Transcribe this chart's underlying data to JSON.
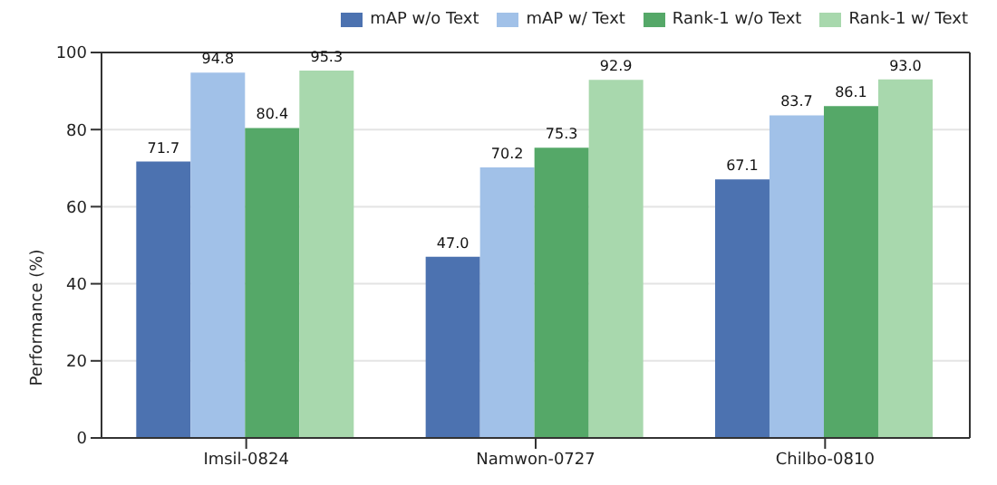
{
  "chart_data": {
    "type": "bar",
    "ylabel": "Performance (%)",
    "categories": [
      "Imsil-0824",
      "Namwon-0727",
      "Chilbo-0810"
    ],
    "series": [
      {
        "name": "mAP w/o Text",
        "color": "#4c72b0",
        "values": [
          71.7,
          47.0,
          67.1
        ],
        "value_labels": [
          "71.7",
          "47.0",
          "67.1"
        ]
      },
      {
        "name": "mAP w/ Text",
        "color": "#a1c1e8",
        "values": [
          94.8,
          70.2,
          83.7
        ],
        "value_labels": [
          "94.8",
          "70.2",
          "83.7"
        ]
      },
      {
        "name": "Rank-1 w/o Text",
        "color": "#55a868",
        "values": [
          80.4,
          75.3,
          86.1
        ],
        "value_labels": [
          "80.4",
          "75.3",
          "86.1"
        ]
      },
      {
        "name": "Rank-1 w/ Text",
        "color": "#a8d8ad",
        "values": [
          95.3,
          92.9,
          93.0
        ],
        "value_labels": [
          "95.3",
          "92.9",
          "93.0"
        ]
      }
    ],
    "ylim": [
      0,
      100
    ],
    "yticks": [
      0,
      20,
      40,
      60,
      80,
      100
    ],
    "grid": "y",
    "legend": "top right"
  }
}
